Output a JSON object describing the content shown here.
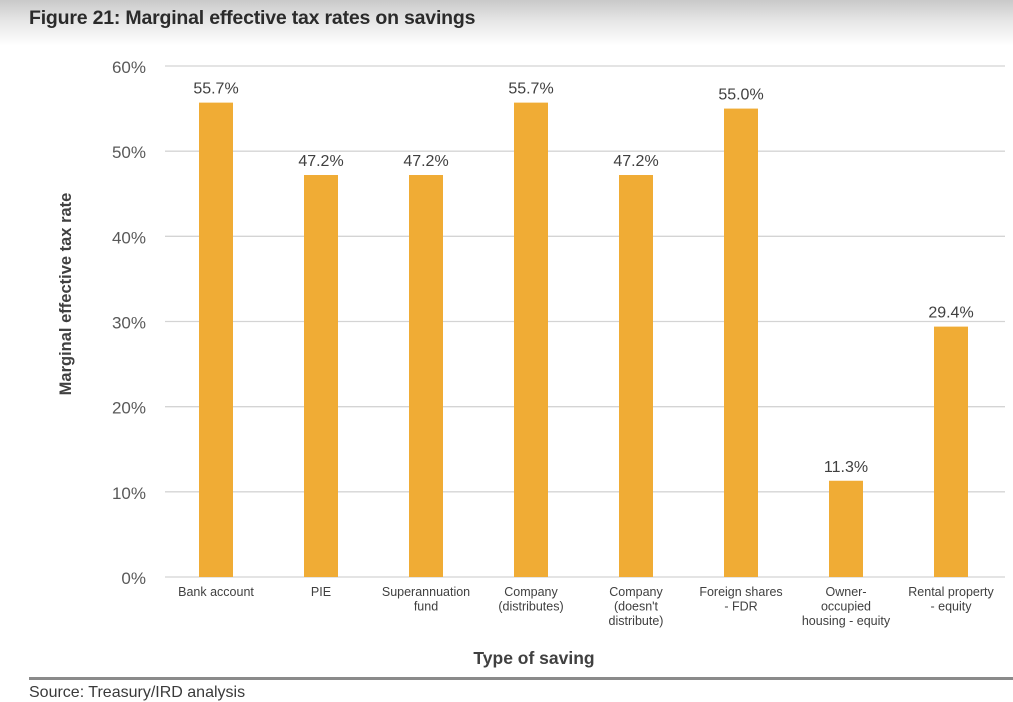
{
  "figure": {
    "title": "Figure 21: Marginal effective tax rates on savings",
    "source": "Source: Treasury/IRD analysis"
  },
  "colors": {
    "bar": "#F0AC35",
    "grid": "#d4d4d4",
    "tick_text": "#595959",
    "label_text": "#404040",
    "axis_title": "#404040"
  },
  "chart_data": {
    "type": "bar",
    "title": "Figure 21: Marginal effective tax rates on savings",
    "xlabel": "Type of saving",
    "ylabel": "Marginal effective tax rate",
    "ylim": [
      0,
      60
    ],
    "yticks": [
      0,
      10,
      20,
      30,
      40,
      50,
      60
    ],
    "ytick_labels": [
      "0%",
      "10%",
      "20%",
      "30%",
      "40%",
      "50%",
      "60%"
    ],
    "grid": true,
    "legend": "none",
    "categories": [
      [
        "Bank account"
      ],
      [
        "PIE"
      ],
      [
        "Superannuation",
        "fund"
      ],
      [
        "Company",
        "(distributes)"
      ],
      [
        "Company",
        "(doesn't",
        "distribute)"
      ],
      [
        "Foreign shares",
        "- FDR"
      ],
      [
        "Owner-",
        "occupied",
        "housing - equity"
      ],
      [
        "Rental property",
        "- equity"
      ]
    ],
    "values": [
      55.7,
      47.2,
      47.2,
      55.7,
      47.2,
      55.0,
      11.3,
      29.4
    ],
    "data_labels": [
      "55.7%",
      "47.2%",
      "47.2%",
      "55.7%",
      "47.2%",
      "55.0%",
      "11.3%",
      "29.4%"
    ]
  }
}
